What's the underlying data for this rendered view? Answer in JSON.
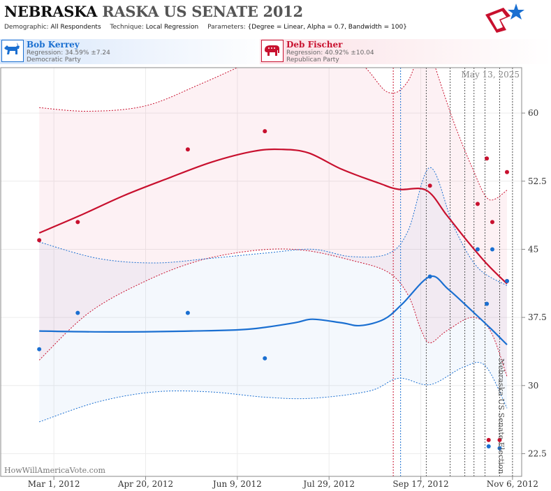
{
  "header": {
    "title_state": "NEBRASKA",
    "title_rest": "RASKA US SENATE 2012",
    "demographic_label": "Demographic:",
    "demographic_value": "All Respondents",
    "technique_label": "Technique:",
    "technique_value": "Local Regression",
    "parameters_label": "Parameters:",
    "parameters_value": "{Degree = Linear, Alpha = 0.7, Bandwidth = 100}"
  },
  "candidates": {
    "dem": {
      "name": "Bob Kerrey",
      "regression": "Regression: 34.59% ±7.24",
      "party": "Democratic Party",
      "icon": "donkey-icon"
    },
    "rep": {
      "name": "Deb Fischer",
      "regression": "Regression: 40.92% ±10.04",
      "party": "Republican Party",
      "icon": "elephant-icon"
    }
  },
  "colors": {
    "dem": "#1a6fd1",
    "rep": "#c8102e"
  },
  "watermark": "HowWillAmericaVote.com",
  "date_stamp": "May 13, 2025",
  "election_label": "Nebraska US Senate Election",
  "chart_data": {
    "type": "line",
    "x_axis": {
      "type": "date",
      "range": [
        "2012-02-01",
        "2012-11-11"
      ],
      "ticks": [
        {
          "date": "2012-03-01",
          "label": "Mar 1, 2012"
        },
        {
          "date": "2012-04-20",
          "label": "Apr 20, 2012"
        },
        {
          "date": "2012-06-09",
          "label": "Jun 9, 2012"
        },
        {
          "date": "2012-07-29",
          "label": "Jul 29, 2012"
        },
        {
          "date": "2012-09-17",
          "label": "Sep 17, 2012"
        },
        {
          "date": "2012-11-06",
          "label": "Nov 6, 2012"
        }
      ]
    },
    "y_axis": {
      "range": [
        20,
        65
      ],
      "ticks": [
        22.5,
        30,
        37.5,
        45,
        52.5,
        60
      ],
      "position": "right"
    },
    "grid": true,
    "event_lines": [
      {
        "date": "2012-09-02",
        "party": "rep"
      },
      {
        "date": "2012-09-06",
        "party": "dem"
      },
      {
        "date": "2012-09-20",
        "party": "neutral"
      },
      {
        "date": "2012-10-03",
        "party": "neutral"
      },
      {
        "date": "2012-10-11",
        "party": "neutral"
      },
      {
        "date": "2012-10-16",
        "party": "neutral"
      },
      {
        "date": "2012-10-22",
        "party": "neutral"
      },
      {
        "date": "2012-10-30",
        "party": "neutral"
      },
      {
        "date": "2012-11-06",
        "party": "neutral"
      }
    ],
    "series": [
      {
        "party": "rep",
        "polls": [
          {
            "date": "2012-02-22",
            "value": 46
          },
          {
            "date": "2012-03-14",
            "value": 48
          },
          {
            "date": "2012-05-13",
            "value": 56
          },
          {
            "date": "2012-06-24",
            "value": 58
          },
          {
            "date": "2012-09-22",
            "value": 52
          },
          {
            "date": "2012-10-18",
            "value": 50
          },
          {
            "date": "2012-10-23",
            "value": 55
          },
          {
            "date": "2012-10-24",
            "value": 24
          },
          {
            "date": "2012-10-26",
            "value": 48
          },
          {
            "date": "2012-10-30",
            "value": 24
          },
          {
            "date": "2012-11-03",
            "value": 53.5
          },
          {
            "date": "2012-11-03",
            "value": 41.5
          }
        ],
        "trend": [
          {
            "date": "2012-02-22",
            "value": 46.8
          },
          {
            "date": "2012-03-15",
            "value": 48.7
          },
          {
            "date": "2012-04-08",
            "value": 50.9
          },
          {
            "date": "2012-05-02",
            "value": 52.8
          },
          {
            "date": "2012-05-26",
            "value": 54.6
          },
          {
            "date": "2012-06-18",
            "value": 55.8
          },
          {
            "date": "2012-07-03",
            "value": 56
          },
          {
            "date": "2012-07-18",
            "value": 55.6
          },
          {
            "date": "2012-08-05",
            "value": 53.8
          },
          {
            "date": "2012-08-25",
            "value": 52.3
          },
          {
            "date": "2012-09-05",
            "value": 51.6
          },
          {
            "date": "2012-09-20",
            "value": 51.5
          },
          {
            "date": "2012-10-01",
            "value": 48.8
          },
          {
            "date": "2012-10-12",
            "value": 46
          },
          {
            "date": "2012-10-23",
            "value": 43.4
          },
          {
            "date": "2012-11-03",
            "value": 41.2
          }
        ],
        "upper": [
          {
            "date": "2012-02-22",
            "value": 60.6
          },
          {
            "date": "2012-03-20",
            "value": 60.2
          },
          {
            "date": "2012-04-20",
            "value": 60.8
          },
          {
            "date": "2012-05-20",
            "value": 63.2
          },
          {
            "date": "2012-06-20",
            "value": 66
          },
          {
            "date": "2012-07-20",
            "value": 68.5
          },
          {
            "date": "2012-08-15",
            "value": 65.5
          },
          {
            "date": "2012-08-30",
            "value": 62.3
          },
          {
            "date": "2012-09-10",
            "value": 63.5
          },
          {
            "date": "2012-09-20",
            "value": 68.5
          },
          {
            "date": "2012-09-25",
            "value": 65
          },
          {
            "date": "2012-10-05",
            "value": 59
          },
          {
            "date": "2012-10-15",
            "value": 54
          },
          {
            "date": "2012-10-24",
            "value": 50.5
          },
          {
            "date": "2012-11-03",
            "value": 51.5
          }
        ],
        "lower": [
          {
            "date": "2012-02-22",
            "value": 32.8
          },
          {
            "date": "2012-03-20",
            "value": 38
          },
          {
            "date": "2012-04-20",
            "value": 41.5
          },
          {
            "date": "2012-05-20",
            "value": 43.8
          },
          {
            "date": "2012-06-20",
            "value": 44.9
          },
          {
            "date": "2012-07-15",
            "value": 44.9
          },
          {
            "date": "2012-08-10",
            "value": 43.8
          },
          {
            "date": "2012-08-30",
            "value": 42.5
          },
          {
            "date": "2012-09-10",
            "value": 40
          },
          {
            "date": "2012-09-17",
            "value": 36.2
          },
          {
            "date": "2012-09-22",
            "value": 34.7
          },
          {
            "date": "2012-10-01",
            "value": 36
          },
          {
            "date": "2012-10-15",
            "value": 37.5
          },
          {
            "date": "2012-10-25",
            "value": 36
          },
          {
            "date": "2012-11-03",
            "value": 31
          }
        ]
      },
      {
        "party": "dem",
        "polls": [
          {
            "date": "2012-02-22",
            "value": 34
          },
          {
            "date": "2012-03-14",
            "value": 38
          },
          {
            "date": "2012-05-13",
            "value": 38
          },
          {
            "date": "2012-06-24",
            "value": 33
          },
          {
            "date": "2012-09-22",
            "value": 42
          },
          {
            "date": "2012-10-18",
            "value": 45
          },
          {
            "date": "2012-10-23",
            "value": 39
          },
          {
            "date": "2012-10-24",
            "value": 23.3
          },
          {
            "date": "2012-10-26",
            "value": 45
          },
          {
            "date": "2012-10-30",
            "value": 23.1
          },
          {
            "date": "2012-11-03",
            "value": 41.5
          }
        ],
        "trend": [
          {
            "date": "2012-02-22",
            "value": 36
          },
          {
            "date": "2012-04-01",
            "value": 35.9
          },
          {
            "date": "2012-05-15",
            "value": 36
          },
          {
            "date": "2012-06-15",
            "value": 36.2
          },
          {
            "date": "2012-07-10",
            "value": 36.9
          },
          {
            "date": "2012-07-20",
            "value": 37.3
          },
          {
            "date": "2012-08-05",
            "value": 36.9
          },
          {
            "date": "2012-08-15",
            "value": 36.6
          },
          {
            "date": "2012-08-28",
            "value": 37.3
          },
          {
            "date": "2012-09-07",
            "value": 39
          },
          {
            "date": "2012-09-22",
            "value": 42
          },
          {
            "date": "2012-10-02",
            "value": 40.6
          },
          {
            "date": "2012-10-15",
            "value": 38.2
          },
          {
            "date": "2012-10-25",
            "value": 36.3
          },
          {
            "date": "2012-11-03",
            "value": 34.5
          }
        ],
        "upper": [
          {
            "date": "2012-02-22",
            "value": 45.8
          },
          {
            "date": "2012-03-25",
            "value": 44
          },
          {
            "date": "2012-04-25",
            "value": 43.5
          },
          {
            "date": "2012-05-25",
            "value": 44
          },
          {
            "date": "2012-06-25",
            "value": 44.6
          },
          {
            "date": "2012-07-20",
            "value": 45
          },
          {
            "date": "2012-08-10",
            "value": 44.2
          },
          {
            "date": "2012-08-30",
            "value": 44.5
          },
          {
            "date": "2012-09-10",
            "value": 47
          },
          {
            "date": "2012-09-22",
            "value": 54
          },
          {
            "date": "2012-10-05",
            "value": 47.5
          },
          {
            "date": "2012-10-18",
            "value": 43
          },
          {
            "date": "2012-11-03",
            "value": 41
          }
        ],
        "lower": [
          {
            "date": "2012-02-22",
            "value": 26
          },
          {
            "date": "2012-03-25",
            "value": 28.2
          },
          {
            "date": "2012-04-25",
            "value": 29.3
          },
          {
            "date": "2012-05-25",
            "value": 29.3
          },
          {
            "date": "2012-06-25",
            "value": 28.7
          },
          {
            "date": "2012-07-20",
            "value": 28.6
          },
          {
            "date": "2012-08-20",
            "value": 29.4
          },
          {
            "date": "2012-09-05",
            "value": 30.8
          },
          {
            "date": "2012-09-22",
            "value": 30.1
          },
          {
            "date": "2012-10-10",
            "value": 32
          },
          {
            "date": "2012-10-22",
            "value": 32.2
          },
          {
            "date": "2012-11-03",
            "value": 27.5
          }
        ]
      }
    ]
  }
}
